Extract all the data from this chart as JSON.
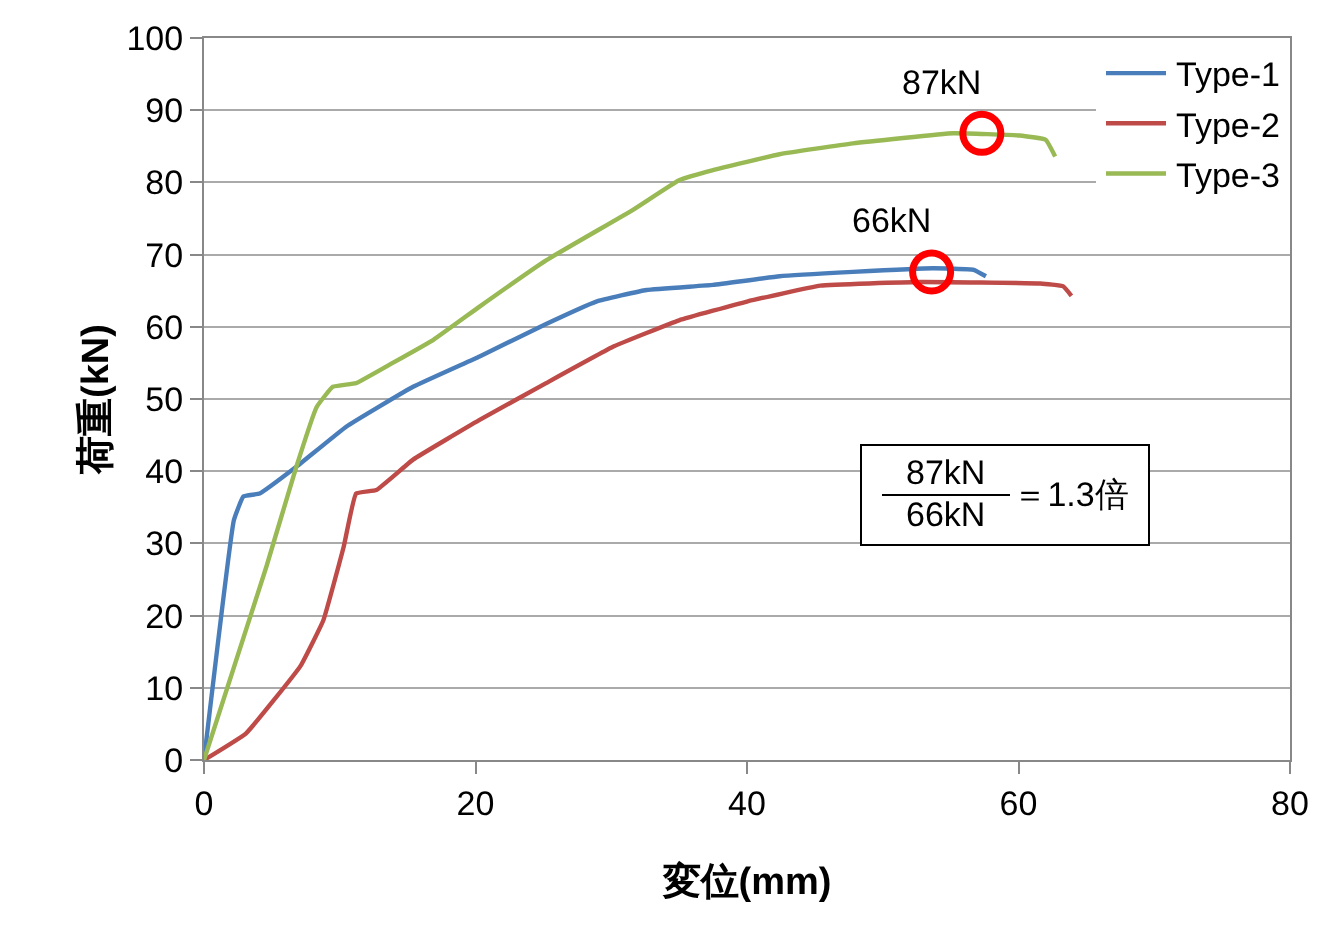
{
  "chart_data": {
    "type": "line",
    "xlabel": "変位(mm)",
    "ylabel": "荷重(kN)",
    "xlim": [
      0,
      80
    ],
    "xticks": [
      0,
      20,
      40,
      60,
      80
    ],
    "ylim": [
      0,
      100
    ],
    "yticks": [
      0,
      10,
      20,
      30,
      40,
      50,
      60,
      70,
      80,
      90,
      100
    ],
    "grid": "y",
    "legend": "top right",
    "line_style": "solid",
    "marker": "none",
    "series": [
      {
        "name": "Type-1",
        "color": "#4a7ebb",
        "x": [
          0,
          2.2,
          2.9,
          4.1,
          6.8,
          10.5,
          15.4,
          20.3,
          25.2,
          28.9,
          32.6,
          37.5,
          42.4,
          47.8,
          53.7,
          56.7,
          57.6
        ],
        "values": [
          0,
          33.2,
          36.5,
          36.9,
          40.6,
          46.2,
          51.7,
          55.9,
          60.4,
          63.5,
          65.1,
          65.8,
          67,
          67.6,
          68.1,
          67.9,
          67
        ]
      },
      {
        "name": "Type-2",
        "color": "#be4b48",
        "x": [
          0,
          3.1,
          7.1,
          8.8,
          10.3,
          11.2,
          12.7,
          15.4,
          20.3,
          25.2,
          30.2,
          35,
          40,
          45.4,
          52.7,
          61.6,
          63.3,
          63.9
        ],
        "values": [
          0,
          3.7,
          13,
          19.4,
          29.6,
          36.9,
          37.4,
          41.6,
          47.1,
          52.2,
          57.3,
          60.9,
          63.5,
          65.7,
          66.2,
          66,
          65.6,
          64.3
        ]
      },
      {
        "name": "Type-3",
        "color": "#98b954",
        "x": [
          0,
          4.6,
          6.8,
          8.3,
          9.5,
          11.2,
          13.9,
          16.9,
          20.3,
          25.2,
          31.6,
          35,
          37.5,
          42.4,
          47.8,
          55.2,
          60.1,
          62,
          62.7
        ],
        "values": [
          0,
          26.8,
          40.6,
          48.9,
          51.7,
          52.2,
          55,
          58.2,
          62.8,
          69.2,
          76.2,
          80.3,
          81.7,
          83.9,
          85.4,
          86.8,
          86.5,
          85.9,
          83.6
        ]
      },
      {
        "type": "scatter",
        "color": "#ff0000",
        "marker": "circle",
        "x": [
          57.3,
          53.6
        ],
        "values": [
          86.8,
          67.6
        ]
      }
    ],
    "annotations": [
      {
        "text": "87kN",
        "x": 57.3,
        "y": 86.8
      },
      {
        "text": "66kN",
        "x": 53.6,
        "y": 67.6
      },
      "87kN",
      "66kN",
      "＝1.3倍"
    ]
  }
}
